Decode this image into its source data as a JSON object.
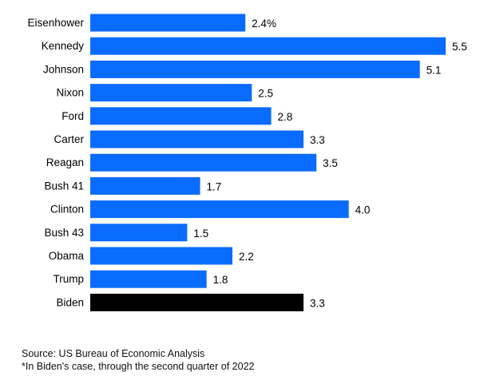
{
  "source": "Source: US Bureau of Economic Analysis",
  "footnote": "*In Biden's case, through the second quarter of 2022",
  "colors": {
    "bar": "#0a6bff",
    "highlight": "#000000",
    "text": "#000000"
  },
  "chart_data": {
    "type": "bar",
    "orientation": "horizontal",
    "categories": [
      "Eisenhower",
      "Kennedy",
      "Johnson",
      "Nixon",
      "Ford",
      "Carter",
      "Reagan",
      "Bush 41",
      "Clinton",
      "Bush 43",
      "Obama",
      "Trump",
      "Biden"
    ],
    "values": [
      2.4,
      5.5,
      5.1,
      2.5,
      2.8,
      3.3,
      3.5,
      1.7,
      4.0,
      1.5,
      2.2,
      1.8,
      3.3
    ],
    "value_labels": [
      "2.4%",
      "5.5",
      "5.1",
      "2.5",
      "2.8",
      "3.3",
      "3.5",
      "1.7",
      "4.0",
      "1.5",
      "2.2",
      "1.8",
      "3.3"
    ],
    "highlighted_category": "Biden",
    "xlim": [
      0,
      5.5
    ],
    "grid": false,
    "legend": "none"
  }
}
